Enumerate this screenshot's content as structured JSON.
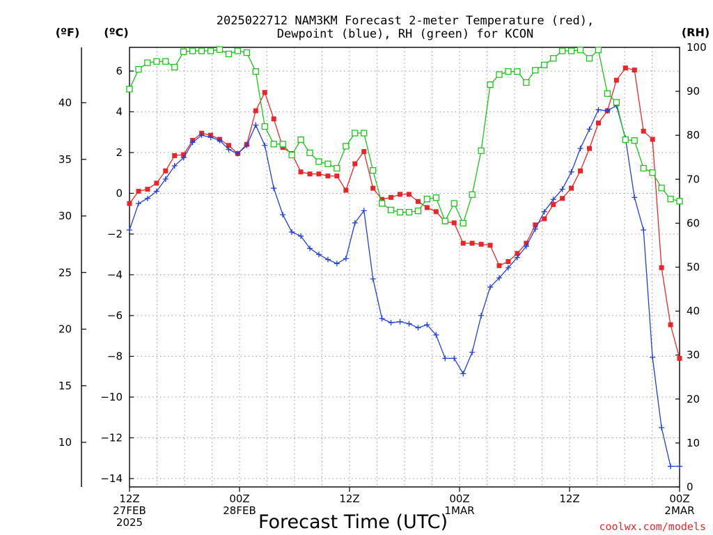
{
  "chart_data": {
    "type": "line",
    "title_line1": "2025022712 NAM3KM Forecast 2-meter Temperature (red),",
    "title_line2": "Dewpoint (blue), RH (green) for KCON",
    "units": {
      "fahrenheit": "(ºF)",
      "celsius": "(ºC)",
      "rh": "(RH)"
    },
    "xlabel": "Forecast Time (UTC)",
    "credit": "coolwx.com/models",
    "ylim_celsius": [
      -14.5,
      7.2
    ],
    "ylim_rh": [
      0,
      100
    ],
    "fahrenheit_ticks": [
      10,
      15,
      20,
      25,
      30,
      35,
      40
    ],
    "celsius_ticks": [
      -14,
      -12,
      -10,
      -8,
      -6,
      -4,
      -2,
      0,
      2,
      4,
      6
    ],
    "celsius_tick_labels": [
      "−14",
      "−12",
      "−10",
      "−8",
      "−6",
      "−4",
      "−2",
      "0",
      "2",
      "4",
      "6"
    ],
    "rh_ticks": [
      0,
      10,
      20,
      30,
      40,
      50,
      60,
      70,
      80,
      90,
      100
    ],
    "x_ticks": [
      {
        "hour": 0,
        "lines": [
          "12Z",
          "27FEB",
          "2025"
        ]
      },
      {
        "hour": 12,
        "lines": [
          "00Z",
          "28FEB"
        ]
      },
      {
        "hour": 24,
        "lines": [
          "12Z"
        ]
      },
      {
        "hour": 36,
        "lines": [
          "00Z",
          "1MAR"
        ]
      },
      {
        "hour": 48,
        "lines": [
          "12Z"
        ]
      },
      {
        "hour": 60,
        "lines": [
          "00Z",
          "2MAR"
        ]
      }
    ],
    "x_range_hours": [
      0,
      60
    ],
    "grid": true,
    "series": [
      {
        "name": "Temperature",
        "color": "#e8262a",
        "marker": "square-filled",
        "axis": "celsius",
        "values": [
          -0.5,
          0.1,
          0.2,
          0.5,
          1.1,
          1.85,
          1.9,
          2.6,
          2.95,
          2.85,
          2.65,
          2.35,
          1.95,
          2.4,
          4.05,
          4.95,
          3.65,
          2.25,
          1.95,
          1.05,
          0.95,
          0.95,
          0.85,
          0.85,
          0.15,
          1.45,
          2.05,
          0.25,
          -0.3,
          -0.2,
          -0.05,
          -0.05,
          -0.4,
          -0.7,
          -0.9,
          -1.4,
          -1.45,
          -2.45,
          -2.45,
          -2.5,
          -2.55,
          -3.55,
          -3.35,
          -2.95,
          -2.45,
          -1.55,
          -1.25,
          -0.55,
          -0.25,
          0.25,
          1.1,
          2.2,
          3.45,
          4.05,
          5.55,
          6.15,
          6.05,
          3.05,
          2.65,
          -3.65,
          -6.45,
          -8.1
        ]
      },
      {
        "name": "Dewpoint",
        "color": "#1f3fd8",
        "marker": "plus",
        "axis": "celsius",
        "values": [
          -1.8,
          -0.5,
          -0.25,
          0.1,
          0.7,
          1.35,
          1.75,
          2.5,
          2.85,
          2.75,
          2.6,
          2.15,
          1.95,
          2.35,
          3.35,
          2.35,
          0.25,
          -1.05,
          -1.9,
          -2.1,
          -2.7,
          -3.0,
          -3.25,
          -3.45,
          -3.2,
          -1.45,
          -0.85,
          -4.2,
          -6.15,
          -6.35,
          -6.3,
          -6.4,
          -6.6,
          -6.45,
          -6.95,
          -8.1,
          -8.1,
          -8.85,
          -7.8,
          -6.0,
          -4.6,
          -4.15,
          -3.65,
          -3.15,
          -2.6,
          -1.75,
          -0.9,
          -0.3,
          0.2,
          1.05,
          2.2,
          3.15,
          4.1,
          4.05,
          4.3,
          2.7,
          -0.2,
          -1.8,
          -8.05,
          -11.5,
          -13.4,
          -13.4
        ]
      },
      {
        "name": "RH",
        "color": "#19c419",
        "marker": "square-open",
        "axis": "rh",
        "values": [
          90.5,
          95.0,
          96.5,
          96.8,
          96.8,
          95.5,
          99.0,
          99.2,
          99.2,
          99.2,
          99.5,
          98.5,
          99.2,
          98.8,
          94.5,
          82.0,
          78.0,
          78.0,
          75.5,
          79.0,
          76.0,
          74.0,
          73.5,
          72.5,
          77.5,
          80.5,
          80.5,
          72.0,
          64.5,
          63.0,
          62.5,
          62.5,
          62.8,
          65.5,
          65.8,
          60.5,
          64.5,
          60.0,
          66.5,
          76.5,
          91.5,
          93.8,
          94.5,
          94.5,
          92.0,
          94.8,
          96.0,
          97.5,
          99.2,
          99.2,
          99.4,
          97.5,
          99.4,
          89.5,
          87.5,
          79.0,
          78.8,
          72.5,
          71.5,
          68.0,
          65.5,
          65.0
        ]
      }
    ]
  }
}
